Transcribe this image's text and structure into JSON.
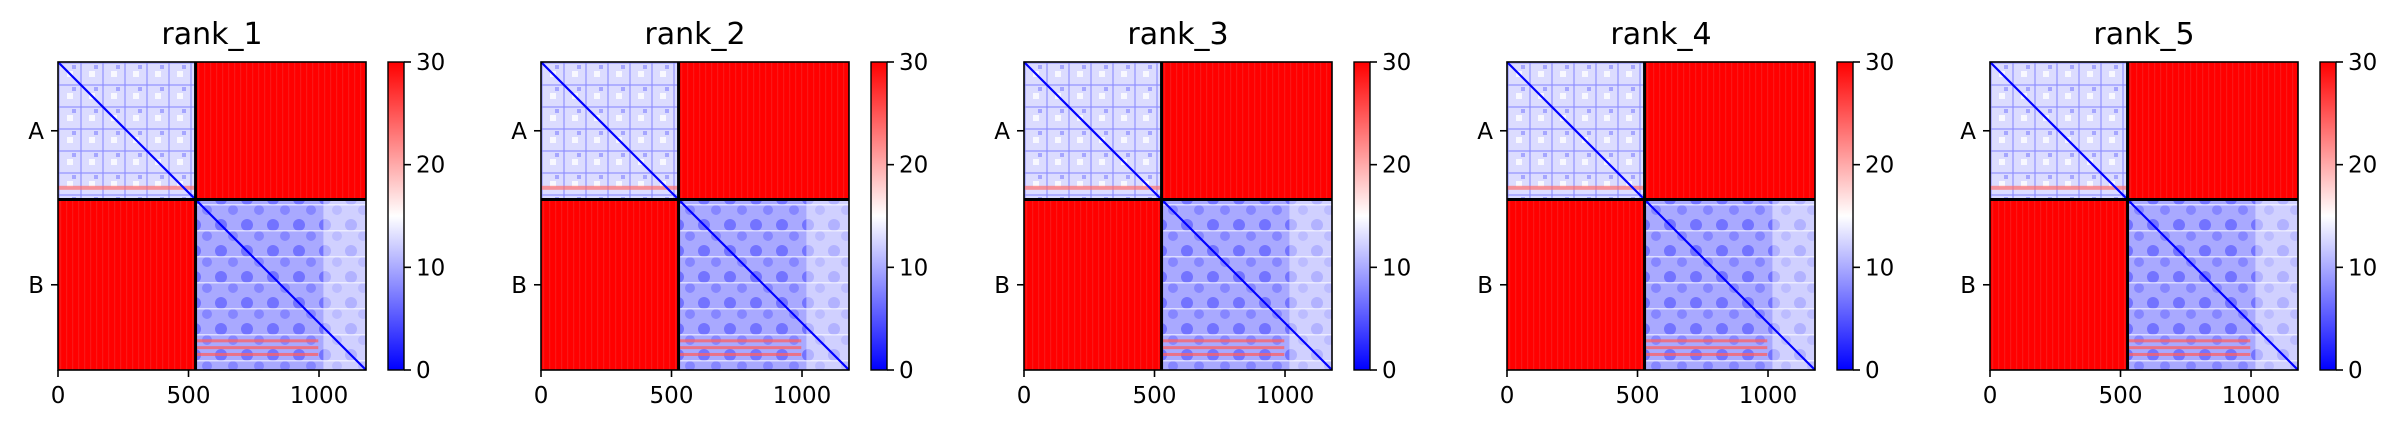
{
  "chart_data": {
    "type": "heatmap",
    "colormap": {
      "low": "#0000ff",
      "mid": "#ffffff",
      "high": "#ff0000"
    },
    "x_ticks": [
      0,
      500,
      1000
    ],
    "x_range": [
      0,
      1180
    ],
    "chain_break": 527,
    "chain_labels": [
      "A",
      "B"
    ],
    "colorbar": {
      "range": [
        0,
        30
      ],
      "ticks": [
        0,
        10,
        20,
        30
      ]
    },
    "panels": [
      {
        "title": "rank_1"
      },
      {
        "title": "rank_2"
      },
      {
        "title": "rank_3"
      },
      {
        "title": "rank_4"
      },
      {
        "title": "rank_5"
      }
    ]
  }
}
